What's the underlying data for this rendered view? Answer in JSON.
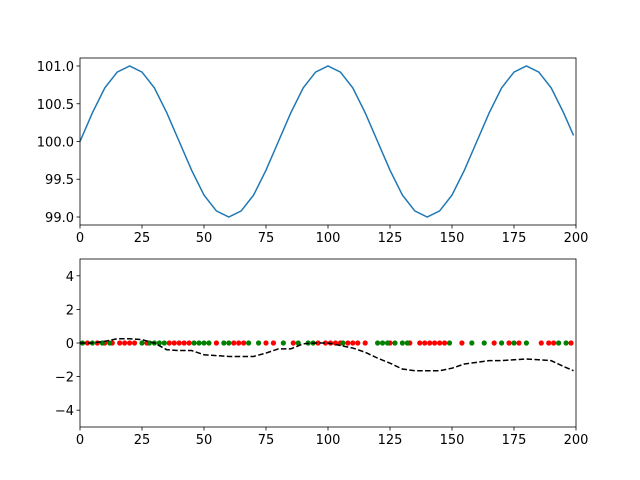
{
  "chart_data": [
    {
      "type": "line",
      "x": [
        0,
        5,
        10,
        15,
        20,
        25,
        30,
        35,
        40,
        45,
        50,
        55,
        60,
        65,
        70,
        75,
        80,
        85,
        90,
        95,
        100,
        105,
        110,
        115,
        120,
        125,
        130,
        135,
        140,
        145,
        150,
        155,
        160,
        165,
        170,
        175,
        180,
        185,
        190,
        195,
        199
      ],
      "series": [
        {
          "color": "#1f77b4",
          "values": [
            100,
            100.38,
            100.71,
            100.92,
            101,
            100.92,
            100.71,
            100.38,
            100,
            99.62,
            99.29,
            99.08,
            99,
            99.08,
            99.29,
            99.62,
            100,
            100.38,
            100.71,
            100.92,
            101,
            100.92,
            100.71,
            100.38,
            100,
            99.62,
            99.29,
            99.08,
            99,
            99.08,
            99.29,
            99.62,
            100,
            100.38,
            100.71,
            100.92,
            101,
            100.92,
            100.71,
            100.38,
            100.08
          ]
        }
      ],
      "xlim": [
        0,
        200
      ],
      "xticks": [
        0,
        25,
        50,
        75,
        100,
        125,
        150,
        175,
        200
      ],
      "ylim": [
        98.894,
        101.106
      ],
      "yticks": [
        {
          "value": 99,
          "label": "99.0"
        },
        99.5,
        {
          "value": 100,
          "label": "100.0"
        },
        100.5,
        {
          "value": 101,
          "label": "101.0"
        }
      ]
    },
    {
      "type": "scatter",
      "series": [
        {
          "kind": "scatter",
          "color": "red",
          "x": [
            3,
            7,
            10,
            13,
            16,
            18,
            20,
            22,
            27,
            36,
            38,
            40,
            42,
            44,
            55,
            62,
            64,
            66,
            75,
            78,
            86,
            96,
            99,
            101,
            103,
            105,
            108,
            110,
            112,
            115,
            125,
            133,
            137,
            139,
            141,
            143,
            145,
            147,
            154,
            167,
            173,
            177,
            186,
            189,
            191,
            198
          ],
          "values": [
            0,
            0,
            0,
            0,
            0,
            0,
            0,
            0,
            0,
            0,
            0,
            0,
            0,
            0,
            0,
            0,
            0,
            0,
            0,
            0,
            0,
            0,
            0,
            0,
            0,
            0,
            0,
            0,
            0,
            0,
            0,
            0,
            0,
            0,
            0,
            0,
            0,
            0,
            0,
            0,
            0,
            0,
            0,
            0,
            0,
            0
          ]
        },
        {
          "kind": "scatter",
          "color": "green",
          "x": [
            1,
            5,
            9,
            12,
            25,
            28,
            30,
            32,
            34,
            46,
            48,
            50,
            52,
            58,
            60,
            68,
            72,
            82,
            88,
            92,
            94,
            106,
            120,
            122,
            124,
            127,
            130,
            132,
            149,
            158,
            163,
            170,
            175,
            180,
            193,
            196
          ],
          "values": [
            0,
            0,
            0,
            0,
            0,
            0,
            0,
            0,
            0,
            0,
            0,
            0,
            0,
            0,
            0,
            0,
            0,
            0,
            0,
            0,
            0,
            0,
            0,
            0,
            0,
            0,
            0,
            0,
            0,
            0,
            0,
            0,
            0,
            0,
            0,
            0
          ]
        },
        {
          "kind": "dashed-line",
          "color": "black",
          "x": [
            0,
            5,
            10,
            15,
            20,
            25,
            30,
            35,
            40,
            45,
            50,
            55,
            60,
            65,
            70,
            75,
            80,
            85,
            90,
            95,
            100,
            105,
            110,
            115,
            120,
            125,
            130,
            135,
            140,
            145,
            150,
            155,
            160,
            165,
            170,
            175,
            180,
            185,
            190,
            195,
            199
          ],
          "values": [
            0,
            0,
            0.1,
            0.25,
            0.25,
            0.2,
            0,
            -0.4,
            -0.45,
            -0.45,
            -0.7,
            -0.75,
            -0.8,
            -0.8,
            -0.8,
            -0.6,
            -0.35,
            -0.35,
            -0.05,
            0,
            0,
            -0.15,
            -0.3,
            -0.55,
            -0.9,
            -1.2,
            -1.55,
            -1.65,
            -1.65,
            -1.65,
            -1.5,
            -1.25,
            -1.15,
            -1.05,
            -1.05,
            -1,
            -0.95,
            -1,
            -1.05,
            -1.4,
            -1.65
          ]
        }
      ],
      "xlim": [
        0,
        200
      ],
      "xticks": [
        0,
        25,
        50,
        75,
        100,
        125,
        150,
        175,
        200
      ],
      "ylim": [
        -5,
        5
      ],
      "yticks": [
        {
          "value": -4,
          "label": "−4"
        },
        {
          "value": -2,
          "label": "−2"
        },
        0,
        2,
        4
      ]
    }
  ]
}
